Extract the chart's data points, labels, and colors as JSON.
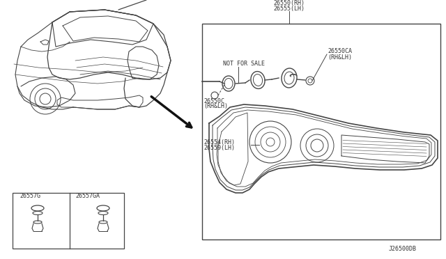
{
  "bg_color": "#ffffff",
  "line_color": "#444444",
  "text_color": "#333333",
  "diagram_id": "J26500DB",
  "label_26550": "26550(RH)\n26555(LH)",
  "label_26550ca": "26550CA\n(RH&LH)",
  "label_26550c": "26550C\n(RH&LH)",
  "label_26554": "26554(RH)\n26559(LH)",
  "label_nfs": "NOT FOR SALE",
  "label_26557g": "26557G",
  "label_26557ga": "26557GA"
}
